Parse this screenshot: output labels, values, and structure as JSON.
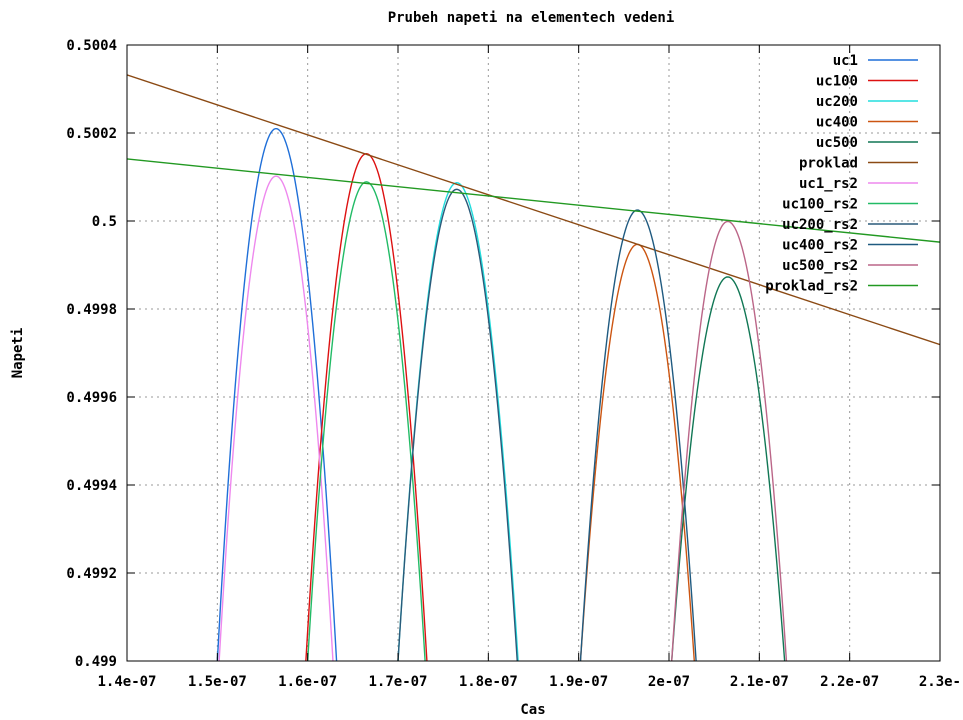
{
  "chart_data": {
    "type": "line",
    "title": "Prubeh napeti na elementech vedeni",
    "xlabel": "Cas",
    "ylabel": "Napeti",
    "xlim": [
      1.4e-07,
      2.3e-07
    ],
    "ylim": [
      0.499,
      0.5004
    ],
    "x_ticks": [
      "1.4e-07",
      "1.5e-07",
      "1.6e-07",
      "1.7e-07",
      "1.8e-07",
      "1.9e-07",
      "2e-07",
      "2.1e-07",
      "2.2e-07",
      "2.3e-"
    ],
    "y_ticks": [
      "0.499",
      "0.4992",
      "0.4994",
      "0.4996",
      "0.4998",
      "0.5",
      "0.5002",
      "0.5004"
    ],
    "grid": true,
    "legend_position": "top-right",
    "series": [
      {
        "name": "uc1",
        "color": "#1f6fd8",
        "kind": "arch",
        "peak_x": 1.565e-07,
        "peak_y": 0.50021,
        "cross_x": [
          1.5e-07,
          1.632e-07
        ]
      },
      {
        "name": "uc100",
        "color": "#dd1111",
        "kind": "arch",
        "peak_x": 1.665e-07,
        "peak_y": 0.500153,
        "cross_x": [
          1.598e-07,
          1.732e-07
        ]
      },
      {
        "name": "uc200",
        "color": "#22dddd",
        "kind": "arch",
        "peak_x": 1.765e-07,
        "peak_y": 0.500087,
        "cross_x": [
          1.7e-07,
          1.833e-07
        ]
      },
      {
        "name": "uc400",
        "color": "#cc5511",
        "kind": "arch",
        "peak_x": 1.965e-07,
        "peak_y": 0.499947,
        "cross_x": [
          1.902e-07,
          2.028e-07
        ]
      },
      {
        "name": "uc500",
        "color": "#117755",
        "kind": "arch",
        "peak_x": 2.065e-07,
        "peak_y": 0.499873,
        "cross_x": [
          2.003e-07,
          2.128e-07
        ]
      },
      {
        "name": "proklad",
        "color": "#8b4a14",
        "kind": "line",
        "x": [
          1.4e-07,
          2.3e-07
        ],
        "y": [
          0.500332,
          0.499719
        ]
      },
      {
        "name": "uc1_rs2",
        "color": "#ee88ee",
        "kind": "arch",
        "peak_x": 1.565e-07,
        "peak_y": 0.500102,
        "cross_x": [
          1.502e-07,
          1.628e-07
        ]
      },
      {
        "name": "uc100_rs2",
        "color": "#22bb66",
        "kind": "arch",
        "peak_x": 1.665e-07,
        "peak_y": 0.500089,
        "cross_x": [
          1.6e-07,
          1.73e-07
        ]
      },
      {
        "name": "uc200_rs2",
        "color": "#2a5a7a",
        "kind": "arch",
        "peak_x": 1.765e-07,
        "peak_y": 0.500072,
        "cross_x": [
          1.7e-07,
          1.832e-07
        ]
      },
      {
        "name": "uc400_rs2",
        "color": "#1f5a80",
        "kind": "arch",
        "peak_x": 1.965e-07,
        "peak_y": 0.500025,
        "cross_x": [
          1.902e-07,
          2.03e-07
        ]
      },
      {
        "name": "uc500_rs2",
        "color": "#bb6688",
        "kind": "arch",
        "peak_x": 2.065e-07,
        "peak_y": 0.499999,
        "cross_x": [
          2.003e-07,
          2.13e-07
        ]
      },
      {
        "name": "proklad_rs2",
        "color": "#229922",
        "kind": "line",
        "x": [
          1.4e-07,
          2.3e-07
        ],
        "y": [
          0.500141,
          0.499952
        ]
      }
    ]
  }
}
